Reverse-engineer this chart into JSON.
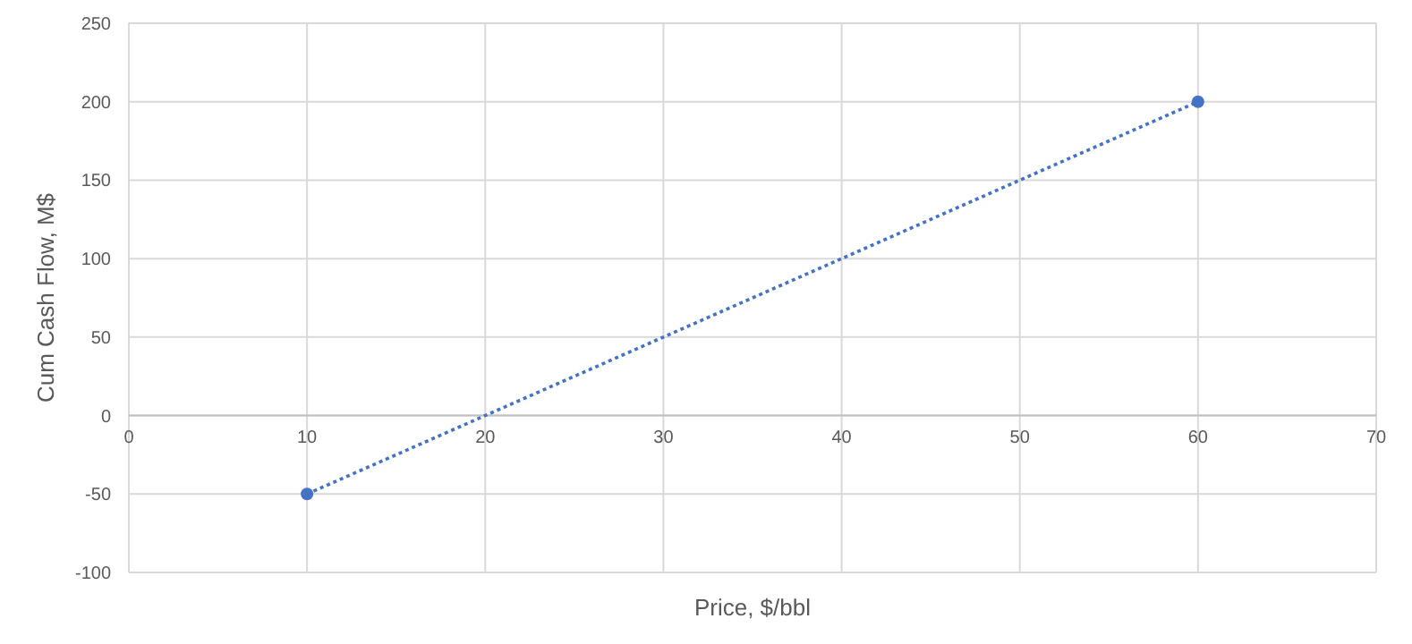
{
  "chart_data": {
    "type": "line",
    "xlabel": "Price, $/bbl",
    "ylabel": "Cum Cash Flow, M$",
    "x": [
      10,
      60
    ],
    "series": [
      {
        "color": "#4472c4",
        "values": [
          -50,
          200
        ]
      }
    ],
    "xlim": [
      0,
      70
    ],
    "xticks": [
      0,
      10,
      20,
      30,
      40,
      50,
      60,
      70
    ],
    "ylim": [
      -100,
      250
    ],
    "yticks": [
      -100,
      -50,
      0,
      50,
      100,
      150,
      200,
      250
    ],
    "grid": true,
    "marker": "circle",
    "line_style": "dotted"
  }
}
